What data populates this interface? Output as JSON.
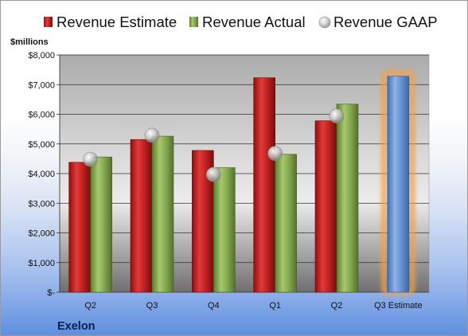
{
  "chart_data": {
    "type": "bar",
    "unit_label": "$millions",
    "company": "Exelon",
    "categories": [
      "Q2",
      "Q3",
      "Q4",
      "Q1",
      "Q2",
      "Q3 Estimate"
    ],
    "ylim": [
      0,
      8000
    ],
    "yticks": [
      0,
      1000,
      2000,
      3000,
      4000,
      5000,
      6000,
      7000,
      8000
    ],
    "ytick_labels": [
      "$-",
      "$1,000",
      "$2,000",
      "$3,000",
      "$4,000",
      "$5,000",
      "$6,000",
      "$7,000",
      "$8,000"
    ],
    "grid": true,
    "legend_position": "top",
    "series": [
      {
        "name": "Revenue Estimate",
        "kind": "bar",
        "color": "#d42a2a",
        "values": [
          4380,
          5150,
          4780,
          7230,
          5780,
          null
        ]
      },
      {
        "name": "Revenue Actual",
        "kind": "bar",
        "color": "#8db055",
        "values": [
          4560,
          5260,
          4200,
          4650,
          6340,
          null
        ]
      },
      {
        "name": "Revenue GAAP",
        "kind": "marker",
        "color": "#c0c0c0",
        "values": [
          4480,
          5290,
          3970,
          4680,
          5940,
          null
        ]
      },
      {
        "name": "Q3 Estimate",
        "kind": "highlight-bar",
        "color": "#6f9ad8",
        "glow": "#f3a14a",
        "values": [
          null,
          null,
          null,
          null,
          null,
          7280
        ]
      }
    ]
  }
}
